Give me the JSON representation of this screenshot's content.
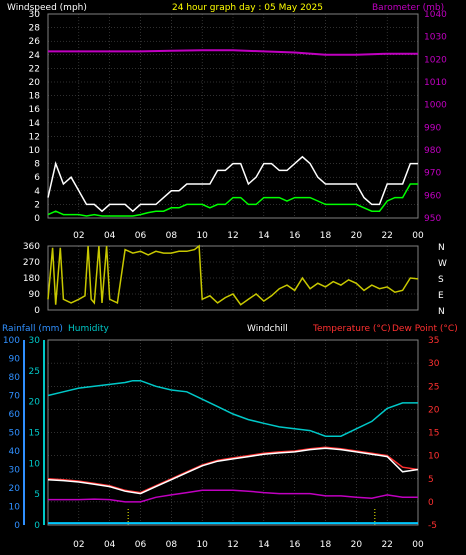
{
  "header": {
    "left_title": "Windspeed (mph)",
    "center_title": "24 hour graph day : 05 May 2025",
    "right_title": "Barometer (mb)"
  },
  "labels": {
    "rainfall": "Rainfall (mm)",
    "humidity": "Humidity",
    "windchill": "Windchill",
    "temperature": "Temperature (°C)",
    "dewpoint": "Dew Point (°C)"
  },
  "colors": {
    "background": "#000000",
    "grid": "#606060",
    "header_left": "#ffffff",
    "header_center": "#ffff00",
    "barometer": "#c000c0",
    "wind_gust": "#ffffff",
    "wind_avg": "#00ff00",
    "direction": "#c8c800",
    "rainfall": "#00c8ff",
    "humidity": "#00c8c8",
    "windchill": "#ffffff",
    "temperature": "#ff3030",
    "dewpoint": "#c000c0",
    "rain_axis": "#3090ff"
  },
  "chart_data": [
    {
      "type": "line",
      "name": "wind-barometer",
      "title": "24 hour graph day : 05 May 2025",
      "ylabel_left": "Windspeed (mph)",
      "ylabel_right": "Barometer (mb)",
      "ylim_left": [
        0,
        30
      ],
      "ylim_right": [
        950,
        1040
      ],
      "yticks_left": [
        "0",
        "2",
        "4",
        "6",
        "8",
        "10",
        "12",
        "14",
        "16",
        "18",
        "20",
        "22",
        "24",
        "26",
        "28",
        "30"
      ],
      "yticks_right": [
        "950",
        "960",
        "970",
        "980",
        "990",
        "1000",
        "1010",
        "1020",
        "1030",
        "1040"
      ],
      "xticks": [
        "02",
        "04",
        "06",
        "08",
        "10",
        "12",
        "14",
        "16",
        "18",
        "20",
        "22",
        "00"
      ],
      "xlim": [
        0,
        24
      ],
      "grid": true,
      "series": [
        {
          "key": "wind_gust",
          "x": [
            0,
            0.5,
            1,
            1.5,
            2,
            2.5,
            3,
            3.5,
            4,
            4.5,
            5,
            5.5,
            6,
            6.5,
            7,
            7.5,
            8,
            8.5,
            9,
            9.5,
            10,
            10.5,
            11,
            11.5,
            12,
            12.5,
            13,
            13.5,
            14,
            14.5,
            15,
            15.5,
            16,
            16.5,
            17,
            17.5,
            18,
            18.5,
            19,
            19.5,
            20,
            20.5,
            21,
            21.5,
            22,
            22.5,
            23,
            23.5,
            24
          ],
          "y": [
            3,
            8,
            5,
            6,
            4,
            2,
            2,
            1,
            2,
            2,
            2,
            1,
            2,
            2,
            2,
            3,
            4,
            4,
            5,
            5,
            5,
            5,
            7,
            7,
            8,
            8,
            5,
            6,
            8,
            8,
            7,
            7,
            8,
            9,
            8,
            6,
            5,
            5,
            5,
            5,
            5,
            3,
            2,
            2,
            5,
            5,
            5,
            8,
            8
          ]
        },
        {
          "key": "wind_avg",
          "x": [
            0,
            0.5,
            1,
            1.5,
            2,
            2.5,
            3,
            3.5,
            4,
            4.5,
            5,
            5.5,
            6,
            6.5,
            7,
            7.5,
            8,
            8.5,
            9,
            9.5,
            10,
            10.5,
            11,
            11.5,
            12,
            12.5,
            13,
            13.5,
            14,
            14.5,
            15,
            15.5,
            16,
            16.5,
            17,
            17.5,
            18,
            18.5,
            19,
            19.5,
            20,
            20.5,
            21,
            21.5,
            22,
            22.5,
            23,
            23.5,
            24
          ],
          "y": [
            0.5,
            1,
            0.5,
            0.5,
            0.5,
            0.3,
            0.5,
            0.3,
            0.3,
            0.3,
            0.3,
            0.3,
            0.5,
            0.8,
            1,
            1,
            1.5,
            1.5,
            2,
            2,
            2,
            1.5,
            2,
            2,
            3,
            3,
            2,
            2,
            3,
            3,
            3,
            2.5,
            3,
            3,
            3,
            2.5,
            2,
            2,
            2,
            2,
            2,
            1.5,
            1,
            1,
            2.5,
            3,
            3,
            5,
            5
          ]
        },
        {
          "key": "barometer",
          "axis": "right",
          "x": [
            0,
            2,
            4,
            6,
            8,
            10,
            12,
            14,
            16,
            18,
            20,
            22,
            24
          ],
          "y": [
            1023.5,
            1023.5,
            1023.5,
            1023.5,
            1023.8,
            1024,
            1024,
            1023.5,
            1023,
            1022,
            1022,
            1022.5,
            1022.5
          ]
        }
      ]
    },
    {
      "type": "line",
      "name": "wind-direction",
      "ylim": [
        0,
        360
      ],
      "yticks": [
        "0",
        "90",
        "180",
        "270",
        "360"
      ],
      "compass": [
        "N",
        "W",
        "S",
        "E",
        "N"
      ],
      "xlim": [
        0,
        24
      ],
      "grid": true,
      "series": [
        {
          "key": "direction",
          "x": [
            0,
            0.3,
            0.5,
            0.8,
            1,
            1.5,
            2,
            2.4,
            2.6,
            2.8,
            3,
            3.3,
            3.5,
            3.8,
            4,
            4.5,
            5,
            5.5,
            6,
            6.5,
            7,
            7.5,
            8,
            8.5,
            9,
            9.5,
            9.8,
            10,
            10.5,
            11,
            11.5,
            12,
            12.5,
            13,
            13.5,
            14,
            14.5,
            15,
            15.5,
            16,
            16.5,
            17,
            17.5,
            18,
            18.5,
            19,
            19.5,
            20,
            20.5,
            21,
            21.5,
            22,
            22.5,
            23,
            23.5,
            24
          ],
          "y": [
            60,
            350,
            30,
            350,
            60,
            40,
            60,
            80,
            360,
            60,
            40,
            360,
            40,
            360,
            60,
            40,
            340,
            320,
            330,
            310,
            330,
            320,
            320,
            330,
            330,
            340,
            360,
            60,
            80,
            40,
            70,
            90,
            30,
            60,
            90,
            50,
            80,
            120,
            140,
            110,
            180,
            120,
            150,
            130,
            160,
            140,
            170,
            150,
            110,
            140,
            120,
            130,
            100,
            110,
            180,
            175
          ]
        }
      ]
    },
    {
      "type": "line",
      "name": "temperature-humidity",
      "ylabel_left": "Humidity",
      "ylabel_right": "Temperature (°C)",
      "ylim_left": [
        0,
        100
      ],
      "ylim_right": [
        -5,
        35
      ],
      "ylim_rain": [
        0,
        30
      ],
      "yticks_left": [
        "0",
        "10",
        "20",
        "30",
        "40",
        "50",
        "60",
        "70",
        "80",
        "90",
        "100"
      ],
      "yticks_right": [
        "-5",
        "0",
        "5",
        "10",
        "15",
        "20",
        "25",
        "30",
        "35"
      ],
      "yticks_rain": [
        "0",
        "5",
        "10",
        "15",
        "20",
        "25",
        "30"
      ],
      "xticks": [
        "02",
        "04",
        "06",
        "08",
        "10",
        "12",
        "14",
        "16",
        "18",
        "20",
        "22",
        "00"
      ],
      "xlim": [
        0,
        24
      ],
      "grid": true,
      "series": [
        {
          "key": "humidity",
          "x": [
            0,
            1,
            2,
            3,
            4,
            5,
            5.5,
            6,
            7,
            8,
            9,
            10,
            11,
            12,
            13,
            14,
            15,
            16,
            17,
            18,
            19,
            20,
            21,
            22,
            23,
            24
          ],
          "y": [
            70,
            72,
            74,
            75,
            76,
            77,
            78,
            78,
            75,
            73,
            72,
            68,
            64,
            60,
            57,
            55,
            53,
            52,
            51,
            48,
            48,
            52,
            56,
            63,
            66,
            66
          ]
        },
        {
          "key": "temperature",
          "x": [
            0,
            1,
            2,
            3,
            4,
            5,
            6,
            7,
            8,
            9,
            10,
            11,
            12,
            13,
            14,
            15,
            16,
            17,
            18,
            19,
            20,
            21,
            22,
            23,
            24
          ],
          "y": [
            5,
            4.8,
            4.5,
            4,
            3.5,
            2.5,
            2,
            3.5,
            5,
            6.5,
            8,
            9,
            9.5,
            10,
            10.5,
            10.8,
            11,
            11.5,
            11.8,
            11.5,
            11,
            10.5,
            10,
            7.5,
            7
          ]
        },
        {
          "key": "windchill",
          "x": [
            0,
            1,
            2,
            3,
            4,
            5,
            6,
            7,
            8,
            9,
            10,
            11,
            12,
            13,
            14,
            15,
            16,
            17,
            18,
            19,
            20,
            21,
            22,
            23,
            24
          ],
          "y": [
            4.8,
            4.6,
            4.3,
            3.8,
            3.3,
            2.3,
            1.8,
            3.3,
            4.8,
            6.3,
            7.8,
            8.8,
            9.3,
            9.8,
            10.3,
            10.6,
            10.8,
            11.3,
            11.6,
            11.3,
            10.8,
            10.3,
            9.8,
            6.5,
            7
          ]
        },
        {
          "key": "dewpoint",
          "x": [
            0,
            1,
            2,
            3,
            4,
            5,
            6,
            7,
            8,
            9,
            10,
            11,
            12,
            13,
            14,
            15,
            16,
            17,
            18,
            19,
            20,
            21,
            22,
            23,
            24
          ],
          "y": [
            0.5,
            0.5,
            0.5,
            0.6,
            0.5,
            0,
            0,
            1,
            1.5,
            2,
            2.5,
            2.5,
            2.5,
            2.3,
            2,
            1.8,
            1.8,
            1.8,
            1.3,
            1.3,
            1,
            0.8,
            1.5,
            1,
            1
          ]
        },
        {
          "key": "rainfall",
          "axis": "rain",
          "x": [
            0,
            24
          ],
          "y": [
            0.3,
            0.3
          ]
        }
      ],
      "markers_x": [
        5.2,
        21.2
      ]
    }
  ]
}
